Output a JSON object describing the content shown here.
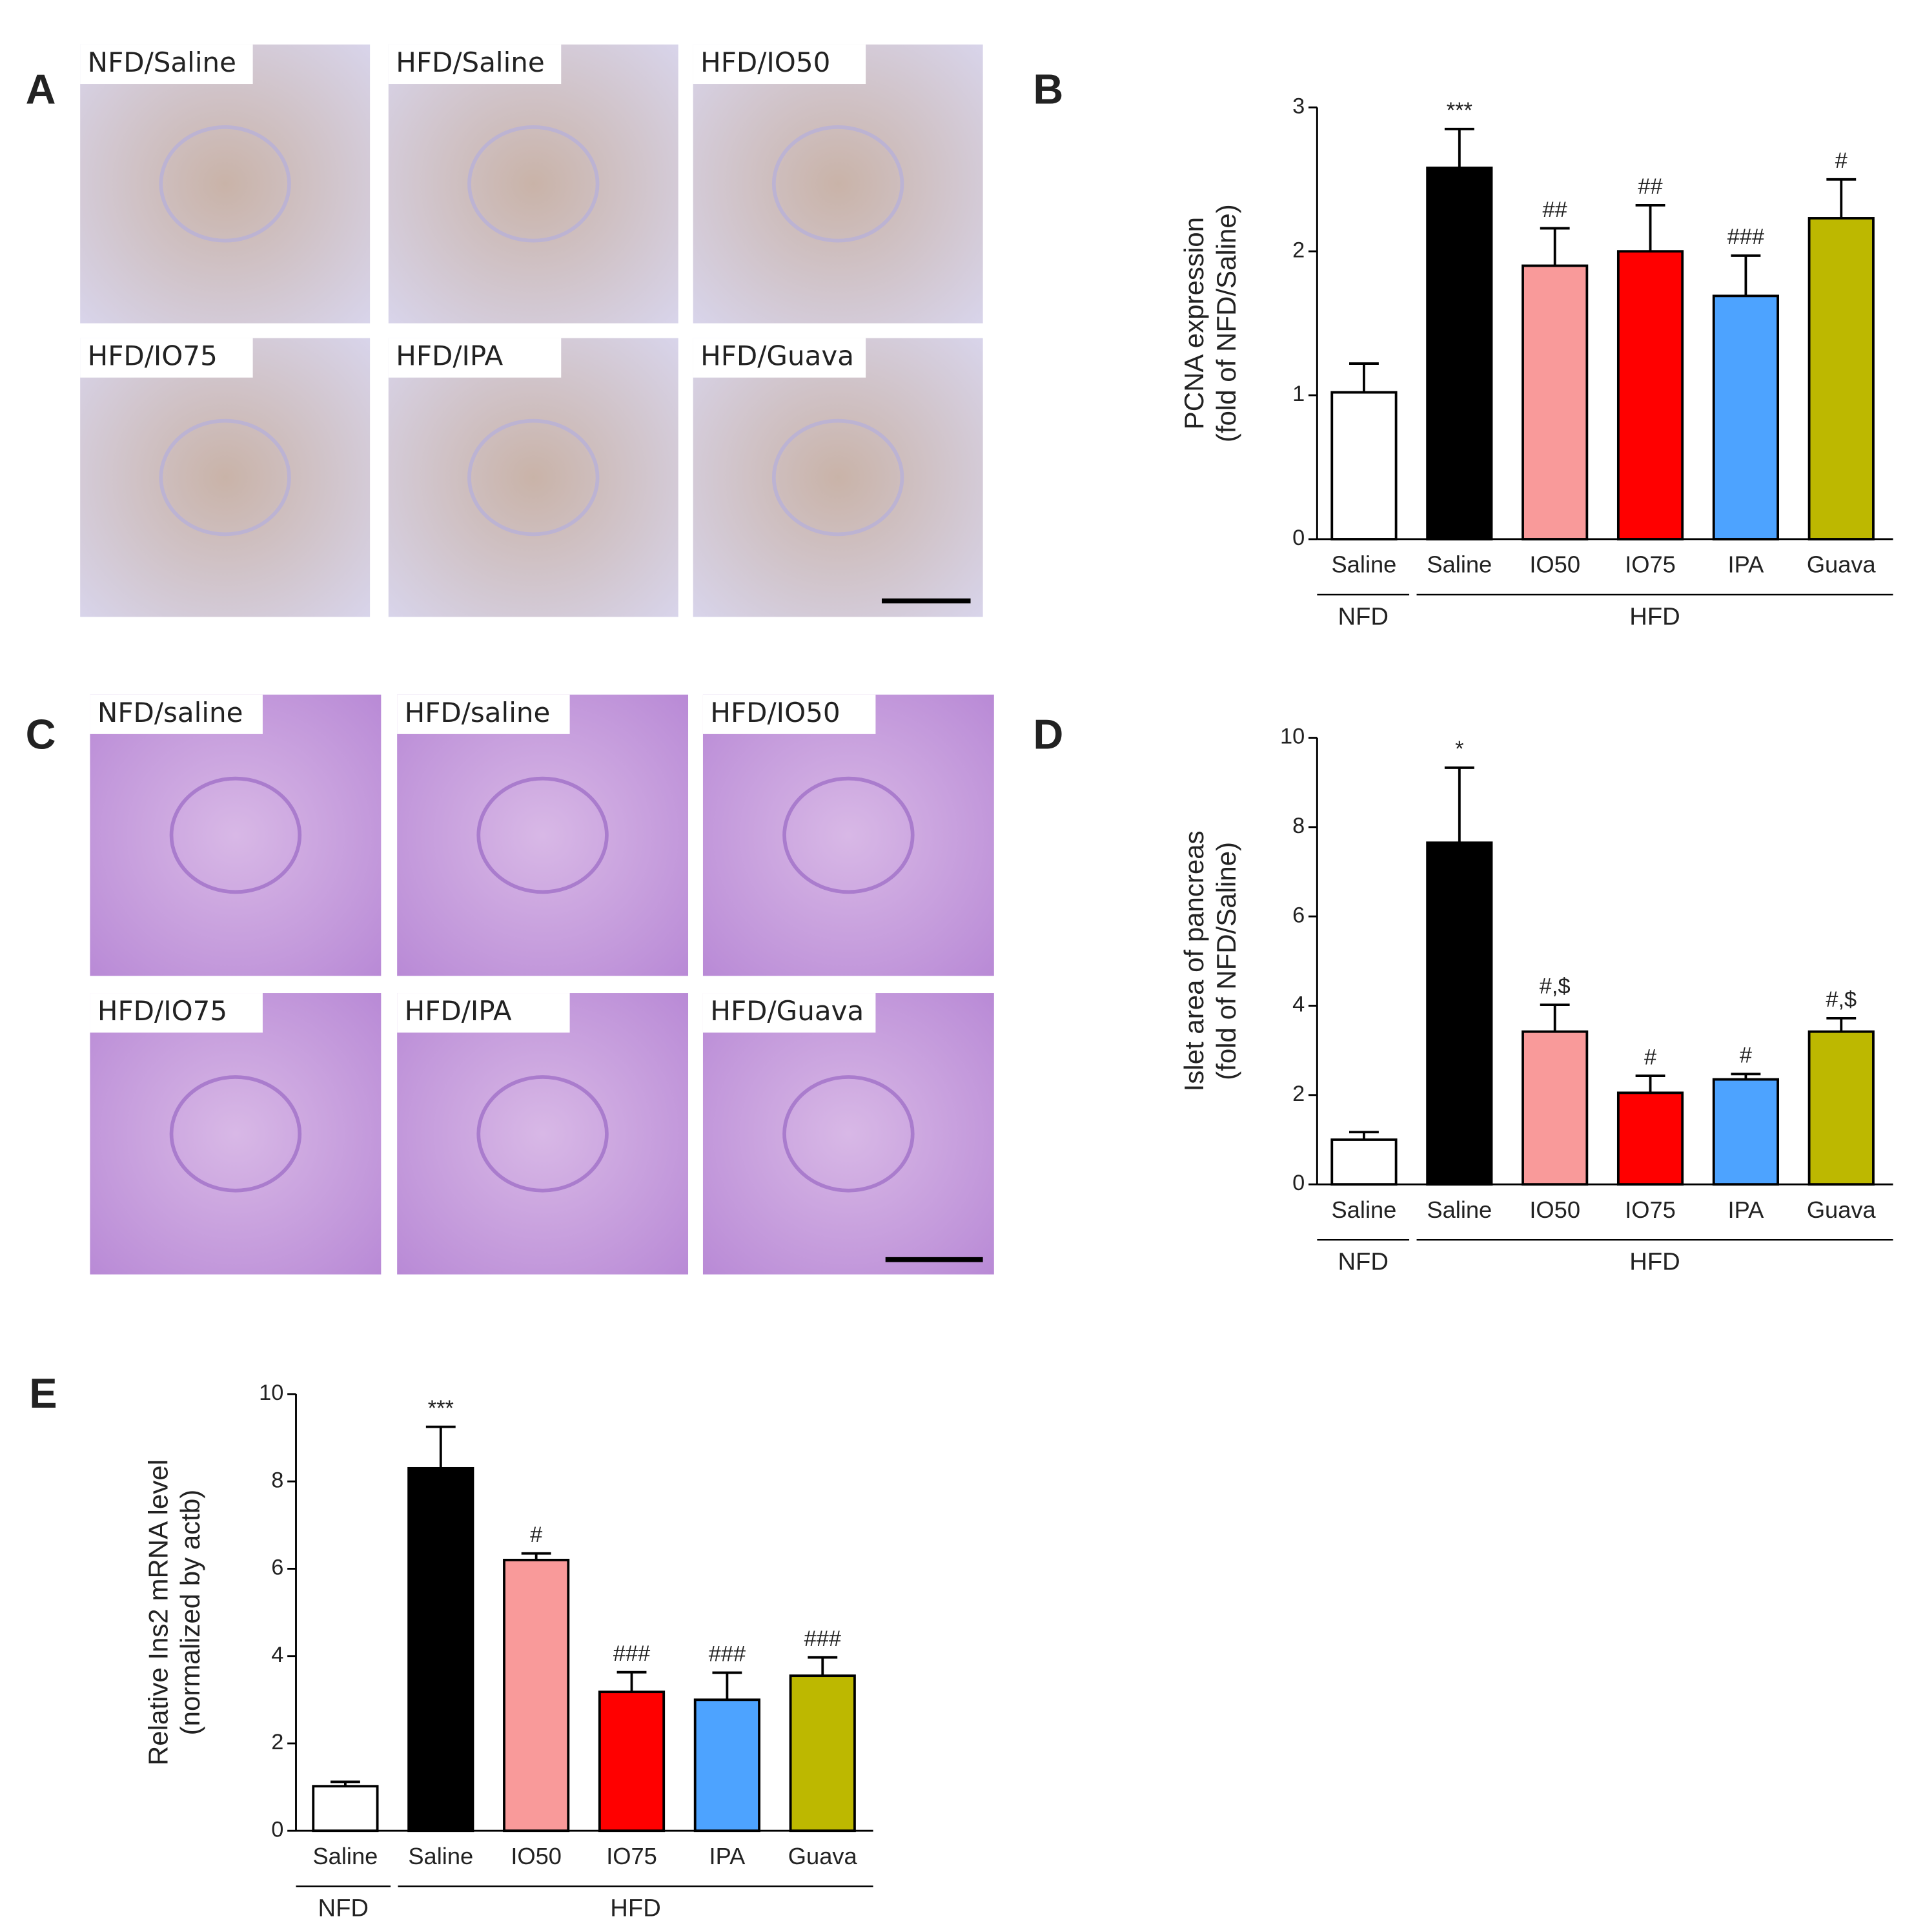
{
  "figure_panels": [
    {
      "label": "A",
      "images": [
        "NFD/Saline",
        "HFD/Saline",
        "HFD/IO50",
        "HFD/IO75",
        "HFD/IPA",
        "HFD/Guava"
      ]
    },
    {
      "label": "C",
      "images": [
        "NFD/saline",
        "HFD/saline",
        "HFD/IO50",
        "HFD/IO75",
        "HFD/IPA",
        "HFD/Guava"
      ]
    }
  ],
  "chart_data": [
    {
      "type": "bar",
      "panel": "B",
      "ylabel": [
        "PCNA expression",
        "(fold of NFD/Saline)"
      ],
      "categories": [
        "Saline",
        "Saline",
        "IO50",
        "IO75",
        "IPA",
        "Guava"
      ],
      "groups": [
        "NFD",
        "HFD",
        "HFD",
        "HFD",
        "HFD",
        "HFD"
      ],
      "values": [
        1.02,
        2.58,
        1.9,
        2.0,
        1.69,
        2.23
      ],
      "errors": [
        0.2,
        0.27,
        0.26,
        0.32,
        0.28,
        0.27
      ],
      "annotations": [
        null,
        "***",
        "##",
        "##",
        "###",
        "#"
      ],
      "colors": [
        "#ffffff",
        "#000000",
        "#f99a9a",
        "#ff0000",
        "#4da3ff",
        "#bdb800"
      ],
      "ylim": [
        0,
        3
      ],
      "yticks": [
        0,
        1,
        2,
        3
      ]
    },
    {
      "type": "bar",
      "panel": "D",
      "ylabel": [
        "Islet area of pancreas",
        "(fold of NFD/Saline)"
      ],
      "categories": [
        "Saline",
        "Saline",
        "IO50",
        "IO75",
        "IPA",
        "Guava"
      ],
      "groups": [
        "NFD",
        "HFD",
        "HFD",
        "HFD",
        "HFD",
        "HFD"
      ],
      "values": [
        1.0,
        7.65,
        3.42,
        2.05,
        2.35,
        3.42
      ],
      "errors": [
        0.17,
        1.68,
        0.6,
        0.38,
        0.12,
        0.3
      ],
      "annotations": [
        null,
        "*",
        "#,$",
        "#",
        "#",
        "#,$"
      ],
      "colors": [
        "#ffffff",
        "#000000",
        "#f99a9a",
        "#ff0000",
        "#4da3ff",
        "#bdb800"
      ],
      "ylim": [
        0,
        10
      ],
      "yticks": [
        0,
        2,
        4,
        6,
        8,
        10
      ]
    },
    {
      "type": "bar",
      "panel": "E",
      "ylabel": [
        "Relative Ins2 mRNA level",
        "(normalized by actb)"
      ],
      "categories": [
        "Saline",
        "Saline",
        "IO50",
        "IO75",
        "IPA",
        "Guava"
      ],
      "groups": [
        "NFD",
        "HFD",
        "HFD",
        "HFD",
        "HFD",
        "HFD"
      ],
      "values": [
        1.02,
        8.3,
        6.2,
        3.18,
        3.0,
        3.55
      ],
      "errors": [
        0.1,
        0.95,
        0.15,
        0.45,
        0.62,
        0.42
      ],
      "annotations": [
        null,
        "***",
        "#",
        "###",
        "###",
        "###"
      ],
      "colors": [
        "#ffffff",
        "#000000",
        "#f99a9a",
        "#ff0000",
        "#4da3ff",
        "#bdb800"
      ],
      "ylim": [
        0,
        10
      ],
      "yticks": [
        0,
        2,
        4,
        6,
        8,
        10
      ]
    }
  ]
}
